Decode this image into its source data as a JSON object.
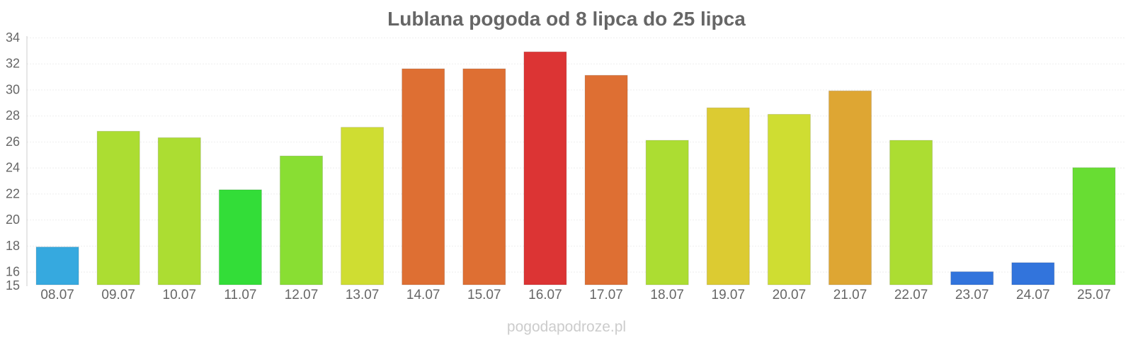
{
  "chart_data": {
    "type": "bar",
    "title": "Lublana pogoda od 8 lipca do 25 lipca",
    "categories": [
      "08.07",
      "09.07",
      "10.07",
      "11.07",
      "12.07",
      "13.07",
      "14.07",
      "15.07",
      "16.07",
      "17.07",
      "18.07",
      "19.07",
      "20.07",
      "21.07",
      "22.07",
      "23.07",
      "24.07",
      "25.07"
    ],
    "values": [
      17.9,
      26.8,
      26.3,
      22.3,
      24.9,
      27.1,
      31.6,
      31.6,
      32.9,
      31.1,
      26.1,
      28.6,
      28.1,
      29.9,
      26.1,
      16.0,
      16.7,
      24.0
    ],
    "colors": [
      "#36a9df",
      "#acdd32",
      "#acdd32",
      "#33dd38",
      "#89de33",
      "#cfdd32",
      "#de6f33",
      "#de6f33",
      "#dc3434",
      "#de6f33",
      "#acdd32",
      "#dccb32",
      "#cfdd32",
      "#dea633",
      "#acdd32",
      "#3274dc",
      "#3274dc",
      "#68dd33"
    ],
    "ylim": [
      15,
      34
    ],
    "yticks": [
      15,
      16,
      18,
      20,
      22,
      24,
      26,
      28,
      30,
      32,
      34
    ],
    "xlabel": "",
    "ylabel": "",
    "grid": true,
    "legend": "none"
  },
  "watermark": "pogodapodroze.pl"
}
